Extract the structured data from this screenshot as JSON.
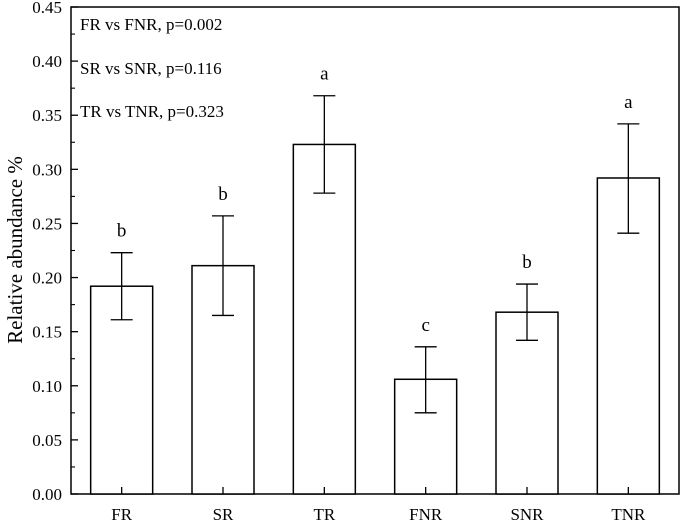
{
  "chart_data": {
    "type": "bar",
    "categories": [
      "FR",
      "SR",
      "TR",
      "FNR",
      "SNR",
      "TNR"
    ],
    "values": [
      0.192,
      0.211,
      0.323,
      0.106,
      0.168,
      0.292
    ],
    "error_low": [
      0.161,
      0.165,
      0.278,
      0.075,
      0.142,
      0.241
    ],
    "error_high": [
      0.223,
      0.257,
      0.368,
      0.136,
      0.194,
      0.342
    ],
    "significance_letters": [
      "b",
      "b",
      "a",
      "c",
      "b",
      "a"
    ],
    "ylabel": "Relative abundance %",
    "xlabel": "",
    "ylim": [
      0,
      0.45
    ],
    "yticks": [
      "0.00",
      "0.05",
      "0.10",
      "0.15",
      "0.20",
      "0.25",
      "0.30",
      "0.35",
      "0.40",
      "0.45"
    ],
    "annotations": [
      "FR vs FNR, p=0.002",
      "SR vs SNR, p=0.116",
      "TR vs TNR, p=0.323"
    ],
    "grid": false,
    "bar_fill": "#ffffff",
    "bar_stroke": "#000000"
  }
}
